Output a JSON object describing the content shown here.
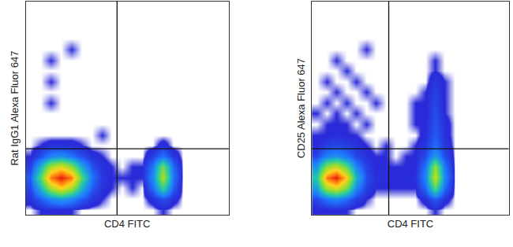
{
  "chart_data": [
    {
      "type": "heatmap",
      "x_label": "CD4 FITC",
      "y_label": "Rat IgG1 Alexa Fluor 647",
      "xlim": [
        0,
        100
      ],
      "ylim": [
        0,
        100
      ],
      "tick_labels": false,
      "quadrant": {
        "x": 45,
        "y": 31
      },
      "x": [
        2.5,
        7.5,
        12.5,
        17.5,
        22.5,
        27.5,
        32.5,
        37.5,
        42.5,
        47.5,
        52.5,
        57.5,
        62.5,
        67.5,
        72.5,
        77.5,
        82.5,
        87.5,
        92.5,
        97.5
      ],
      "y": [
        2.5,
        7.5,
        12.5,
        17.5,
        22.5,
        27.5,
        32.5,
        37.5,
        42.5,
        47.5,
        52.5,
        57.5,
        62.5,
        67.5,
        72.5,
        77.5,
        82.5,
        87.5,
        92.5,
        97.5
      ],
      "z": [
        [
          0,
          1,
          1,
          1,
          1,
          0,
          0,
          0,
          0,
          0,
          0,
          0,
          0,
          1,
          0,
          0,
          0,
          0,
          0,
          0
        ],
        [
          2,
          8,
          15,
          20,
          15,
          8,
          3,
          1,
          0,
          0,
          0,
          0,
          2,
          6,
          2,
          0,
          0,
          0,
          0,
          0
        ],
        [
          5,
          25,
          55,
          70,
          55,
          25,
          8,
          2,
          1,
          0,
          1,
          0,
          10,
          35,
          8,
          0,
          0,
          0,
          0,
          0
        ],
        [
          8,
          40,
          85,
          100,
          85,
          40,
          12,
          3,
          1,
          1,
          1,
          1,
          15,
          55,
          12,
          0,
          0,
          0,
          0,
          0
        ],
        [
          4,
          25,
          55,
          65,
          50,
          22,
          7,
          2,
          1,
          0,
          1,
          1,
          12,
          45,
          10,
          0,
          0,
          0,
          0,
          0
        ],
        [
          1,
          6,
          15,
          18,
          12,
          6,
          2,
          1,
          0,
          0,
          0,
          0,
          4,
          12,
          3,
          0,
          0,
          0,
          0,
          0
        ],
        [
          0,
          1,
          2,
          2,
          2,
          1,
          0,
          0,
          0,
          0,
          0,
          0,
          0,
          2,
          0,
          0,
          0,
          0,
          0,
          0
        ],
        [
          0,
          0,
          0,
          0,
          0,
          0,
          0,
          1,
          0,
          0,
          0,
          0,
          0,
          0,
          0,
          0,
          0,
          0,
          0,
          0
        ],
        [
          0,
          0,
          0,
          0,
          0,
          0,
          0,
          0,
          0,
          0,
          0,
          0,
          0,
          0,
          0,
          0,
          0,
          0,
          0,
          0
        ],
        [
          0,
          0,
          0,
          0,
          0,
          0,
          0,
          0,
          0,
          0,
          0,
          0,
          0,
          0,
          0,
          0,
          0,
          0,
          0,
          0
        ],
        [
          0,
          0,
          1,
          0,
          0,
          0,
          0,
          0,
          0,
          0,
          0,
          0,
          0,
          0,
          0,
          0,
          0,
          0,
          0,
          0
        ],
        [
          0,
          0,
          0,
          0,
          0,
          0,
          0,
          0,
          0,
          0,
          0,
          0,
          0,
          0,
          0,
          0,
          0,
          0,
          0,
          0
        ],
        [
          0,
          0,
          1,
          0,
          0,
          0,
          0,
          0,
          0,
          0,
          0,
          0,
          0,
          0,
          0,
          0,
          0,
          0,
          0,
          0
        ],
        [
          0,
          0,
          0,
          0,
          0,
          0,
          0,
          0,
          0,
          0,
          0,
          0,
          0,
          0,
          0,
          0,
          0,
          0,
          0,
          0
        ],
        [
          0,
          0,
          1,
          0,
          0,
          0,
          0,
          0,
          0,
          0,
          0,
          0,
          0,
          0,
          0,
          0,
          0,
          0,
          0,
          0
        ],
        [
          0,
          0,
          0,
          0,
          1,
          0,
          0,
          0,
          0,
          0,
          0,
          0,
          0,
          0,
          0,
          0,
          0,
          0,
          0,
          0
        ],
        [
          0,
          0,
          0,
          0,
          0,
          0,
          0,
          0,
          0,
          0,
          0,
          0,
          0,
          0,
          0,
          0,
          0,
          0,
          0,
          0
        ],
        [
          0,
          0,
          0,
          0,
          0,
          0,
          0,
          0,
          0,
          0,
          0,
          0,
          0,
          0,
          0,
          0,
          0,
          0,
          0,
          0
        ],
        [
          0,
          0,
          0,
          0,
          0,
          0,
          0,
          0,
          0,
          0,
          0,
          0,
          0,
          0,
          0,
          0,
          0,
          0,
          0,
          0
        ],
        [
          0,
          0,
          0,
          0,
          0,
          0,
          0,
          0,
          0,
          0,
          0,
          0,
          0,
          0,
          0,
          0,
          0,
          0,
          0,
          0
        ]
      ]
    },
    {
      "type": "heatmap",
      "x_label": "CD4 FITC",
      "y_label": "CD25 Alexa Fluor 647",
      "xlim": [
        0,
        100
      ],
      "ylim": [
        0,
        100
      ],
      "tick_labels": false,
      "quadrant": {
        "x": 39,
        "y": 31
      },
      "x": [
        2.5,
        7.5,
        12.5,
        17.5,
        22.5,
        27.5,
        32.5,
        37.5,
        42.5,
        47.5,
        52.5,
        57.5,
        62.5,
        67.5,
        72.5,
        77.5,
        82.5,
        87.5,
        92.5,
        97.5
      ],
      "y": [
        2.5,
        7.5,
        12.5,
        17.5,
        22.5,
        27.5,
        32.5,
        37.5,
        42.5,
        47.5,
        52.5,
        57.5,
        62.5,
        67.5,
        72.5,
        77.5,
        82.5,
        87.5,
        92.5,
        97.5
      ],
      "z": [
        [
          1,
          1,
          1,
          1,
          0,
          0,
          0,
          0,
          0,
          0,
          0,
          0,
          1,
          0,
          0,
          0,
          0,
          0,
          0,
          0
        ],
        [
          5,
          12,
          15,
          10,
          4,
          1,
          0,
          0,
          0,
          0,
          0,
          2,
          8,
          2,
          0,
          0,
          0,
          0,
          0,
          0
        ],
        [
          20,
          55,
          65,
          45,
          15,
          4,
          1,
          1,
          1,
          1,
          1,
          10,
          40,
          10,
          0,
          0,
          0,
          0,
          0,
          0
        ],
        [
          30,
          85,
          100,
          70,
          25,
          6,
          2,
          2,
          1,
          1,
          2,
          15,
          60,
          15,
          0,
          0,
          0,
          0,
          0,
          0
        ],
        [
          18,
          50,
          60,
          40,
          14,
          4,
          1,
          1,
          1,
          1,
          1,
          12,
          50,
          12,
          0,
          0,
          0,
          0,
          0,
          0
        ],
        [
          5,
          15,
          18,
          12,
          5,
          2,
          1,
          1,
          0,
          1,
          1,
          6,
          20,
          6,
          0,
          0,
          0,
          0,
          0,
          0
        ],
        [
          1,
          4,
          5,
          4,
          2,
          1,
          0,
          1,
          0,
          0,
          1,
          3,
          10,
          3,
          0,
          0,
          0,
          0,
          0,
          0
        ],
        [
          1,
          1,
          2,
          1,
          1,
          0,
          0,
          0,
          0,
          0,
          0,
          2,
          8,
          2,
          0,
          0,
          0,
          0,
          0,
          0
        ],
        [
          0,
          1,
          1,
          1,
          0,
          1,
          0,
          0,
          0,
          0,
          1,
          1,
          7,
          2,
          0,
          0,
          0,
          0,
          0,
          0
        ],
        [
          1,
          0,
          1,
          0,
          1,
          0,
          0,
          0,
          0,
          0,
          1,
          1,
          6,
          1,
          0,
          0,
          0,
          0,
          0,
          0
        ],
        [
          0,
          1,
          0,
          1,
          0,
          0,
          1,
          0,
          0,
          0,
          1,
          1,
          5,
          1,
          0,
          0,
          0,
          0,
          0,
          0
        ],
        [
          0,
          0,
          1,
          0,
          0,
          1,
          0,
          0,
          0,
          0,
          0,
          1,
          4,
          1,
          0,
          0,
          0,
          0,
          0,
          0
        ],
        [
          0,
          1,
          0,
          0,
          1,
          0,
          0,
          0,
          0,
          0,
          0,
          0,
          3,
          1,
          0,
          0,
          0,
          0,
          0,
          0
        ],
        [
          0,
          0,
          0,
          1,
          0,
          0,
          0,
          0,
          0,
          0,
          0,
          0,
          1,
          0,
          0,
          0,
          0,
          0,
          0,
          0
        ],
        [
          0,
          0,
          1,
          0,
          0,
          0,
          0,
          0,
          0,
          0,
          0,
          0,
          1,
          0,
          0,
          0,
          0,
          0,
          0,
          0
        ],
        [
          0,
          0,
          0,
          0,
          0,
          1,
          0,
          0,
          0,
          0,
          0,
          0,
          0,
          0,
          0,
          0,
          0,
          0,
          0,
          0
        ],
        [
          0,
          0,
          0,
          0,
          0,
          0,
          0,
          0,
          0,
          0,
          0,
          0,
          0,
          0,
          0,
          0,
          0,
          0,
          0,
          0
        ],
        [
          0,
          0,
          0,
          0,
          0,
          0,
          0,
          0,
          0,
          0,
          0,
          0,
          0,
          0,
          0,
          0,
          0,
          0,
          0,
          0
        ],
        [
          0,
          0,
          0,
          0,
          0,
          0,
          0,
          0,
          0,
          0,
          0,
          0,
          0,
          0,
          0,
          0,
          0,
          0,
          0,
          0
        ],
        [
          0,
          0,
          0,
          0,
          0,
          0,
          0,
          0,
          0,
          0,
          0,
          0,
          0,
          0,
          0,
          0,
          0,
          0,
          0,
          0
        ]
      ]
    }
  ]
}
